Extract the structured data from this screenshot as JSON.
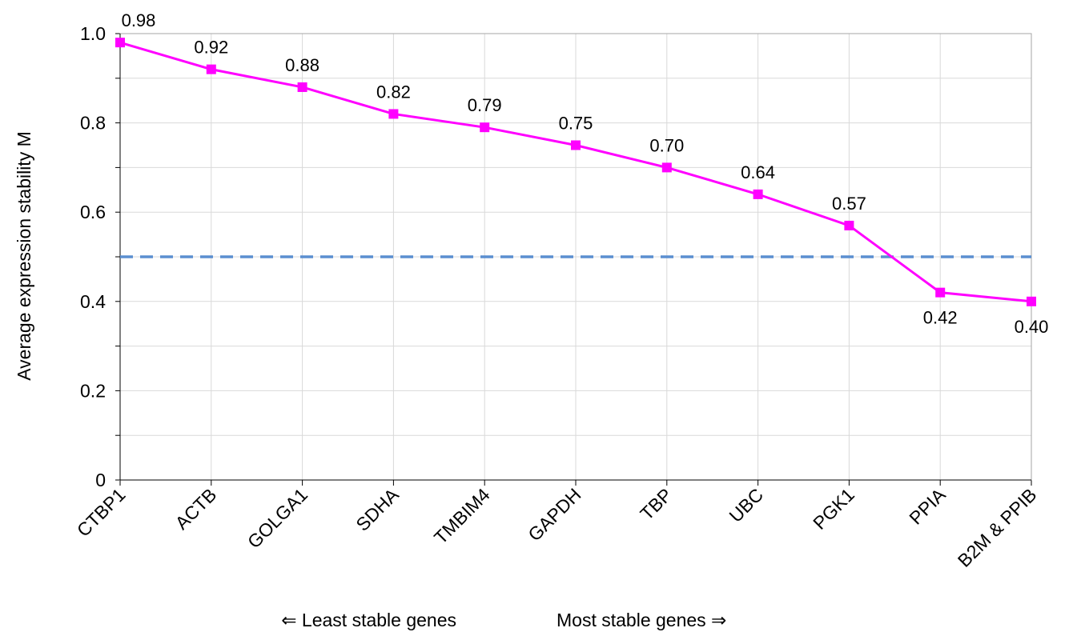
{
  "chart_data": {
    "type": "line",
    "y_axis_label": "Average expression stability M",
    "x_axis_label_left": "⇐ Least stable genes",
    "x_axis_label_right": "Most stable genes ⇒",
    "categories": [
      "CTBP1",
      "ACTB",
      "GOLGA1",
      "SDHA",
      "TMBIM4",
      "GAPDH",
      "TBP",
      "UBC",
      "PGK1",
      "PPIA",
      "B2M & PPIB"
    ],
    "series": [
      {
        "name": "M",
        "color": "#ff00ff",
        "values": [
          0.98,
          0.92,
          0.88,
          0.82,
          0.79,
          0.75,
          0.7,
          0.64,
          0.57,
          0.42,
          0.4
        ],
        "value_labels": [
          "0.98",
          "0.92",
          "0.88",
          "0.82",
          "0.79",
          "0.75",
          "0.70",
          "0.64",
          "0.57",
          "0.42",
          "0.40"
        ]
      }
    ],
    "ylim": [
      0,
      1
    ],
    "yticks": [
      0,
      0.2,
      0.4,
      0.6,
      0.8,
      {
        "value": 1,
        "label": "1.0"
      }
    ],
    "y_minor_ticks": [
      0.1,
      0.3,
      0.5,
      0.7,
      0.9
    ],
    "reference_line": {
      "value": 0.5,
      "color": "#5b8fd0"
    },
    "grid": true
  }
}
